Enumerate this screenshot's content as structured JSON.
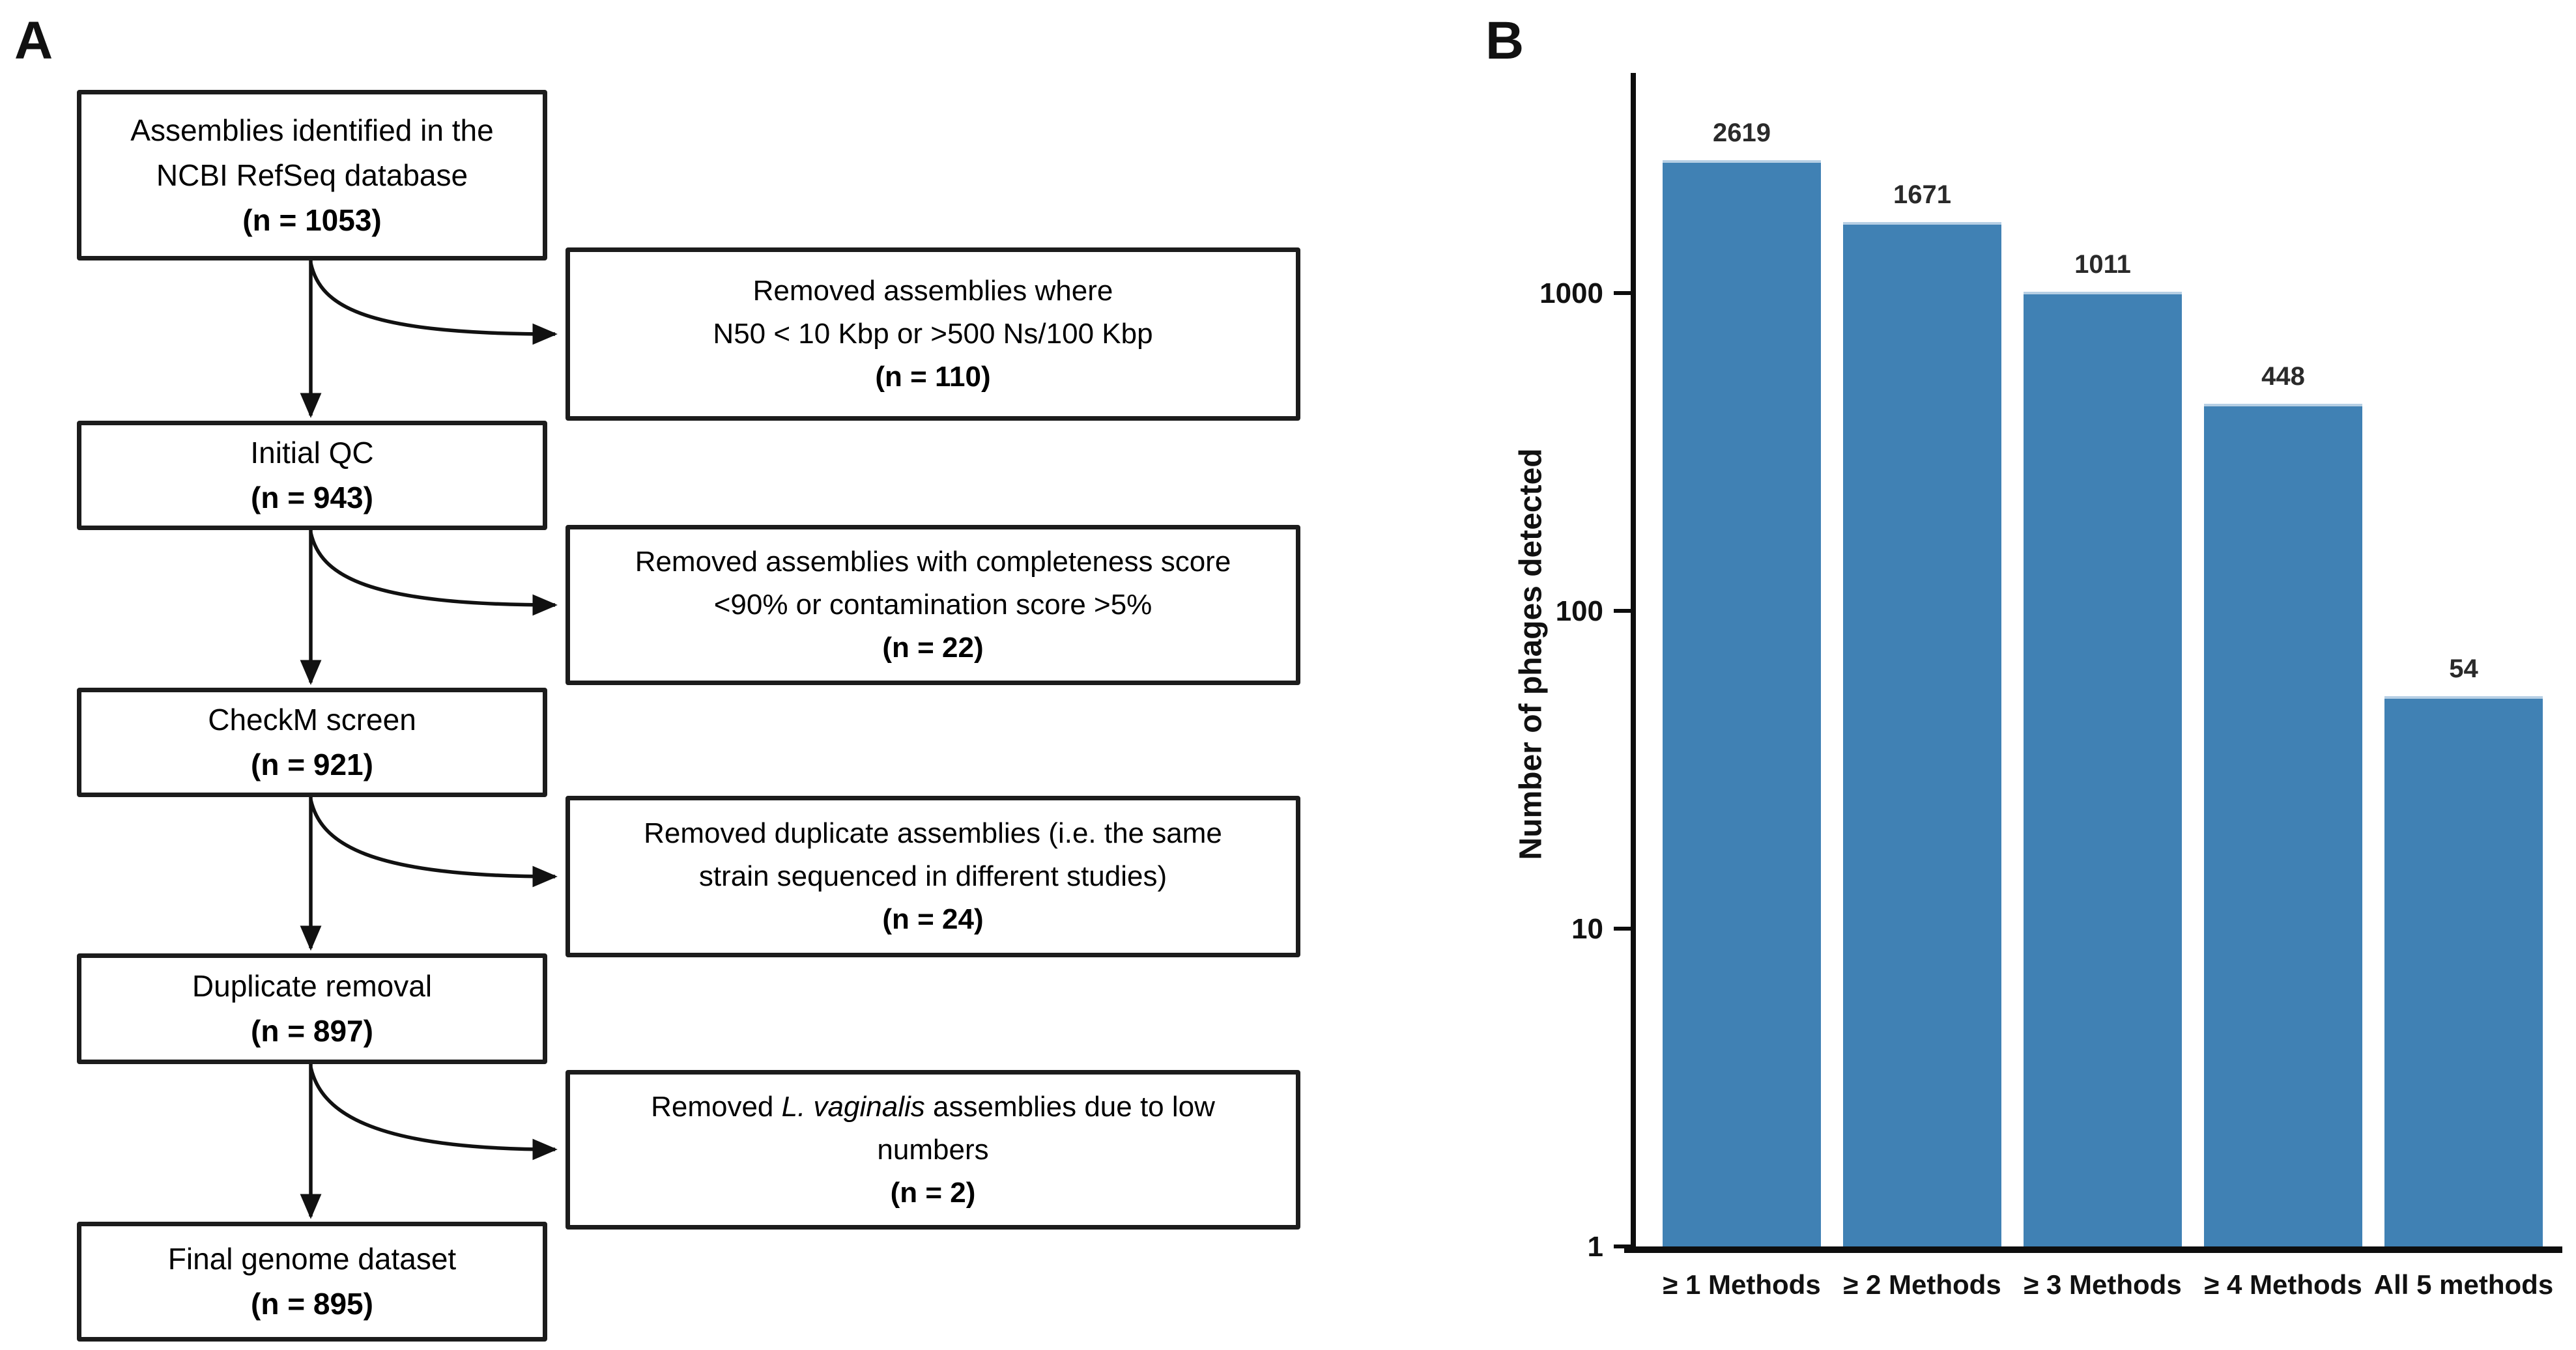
{
  "panel_a_label": "A",
  "panel_b_label": "B",
  "flowchart": {
    "main_boxes": [
      {
        "line1": "Assemblies identified in the",
        "line2": "NCBI RefSeq database",
        "n": "(n = 1053)"
      },
      {
        "line1": "Initial QC",
        "n": "(n = 943)"
      },
      {
        "line1": "CheckM screen",
        "n": "(n = 921)"
      },
      {
        "line1": "Duplicate removal",
        "n": "(n = 897)"
      },
      {
        "line1": "Final genome dataset",
        "n": "(n = 895)"
      }
    ],
    "side_boxes": [
      {
        "line1": "Removed assemblies where",
        "line2": "N50 < 10 Kbp or >500 Ns/100 Kbp",
        "n": "(n = 110)"
      },
      {
        "line1": "Removed assemblies with completeness score",
        "line2": "<90% or contamination score >5%",
        "n": "(n = 22)"
      },
      {
        "line1": "Removed duplicate assemblies (i.e. the same",
        "line2": "strain sequenced in different studies)",
        "n": "(n = 24)"
      },
      {
        "prefix": "Removed ",
        "italic": "L. vaginalis",
        "suffix": " assemblies due to low",
        "line2": "numbers",
        "n": "(n = 2)"
      }
    ]
  },
  "chart_data": {
    "type": "bar",
    "categories": [
      "≥ 1 Methods",
      "≥ 2 Methods",
      "≥ 3 Methods",
      "≥ 4 Methods",
      "All 5 methods"
    ],
    "values": [
      2619,
      1671,
      1011,
      448,
      54
    ],
    "value_labels": [
      "2619",
      "1671",
      "1011",
      "448",
      "54"
    ],
    "title": "",
    "xlabel": "",
    "ylabel": "Number of phages detected",
    "yscale": "log",
    "yticks": [
      1,
      10,
      100,
      1000
    ],
    "ytick_labels": [
      "1",
      "10",
      "100",
      "1000"
    ],
    "ylim": [
      1,
      4500
    ],
    "grid": false,
    "legend": null,
    "bar_color": "#4081b4",
    "bar_top_edge_color": "#b6cfe4"
  }
}
